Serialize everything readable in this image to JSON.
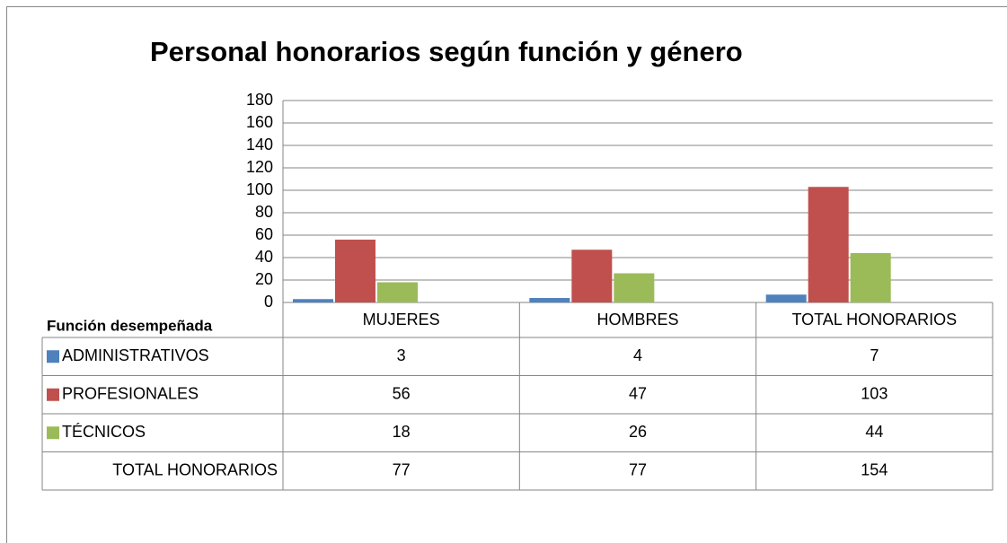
{
  "chart_data": {
    "type": "bar",
    "title": "Personal honorarios según función y género",
    "table_header": "Función desempeñada",
    "categories": [
      "MUJERES",
      "HOMBRES",
      "TOTAL HONORARIOS"
    ],
    "series": [
      {
        "name": "ADMINISTRATIVOS",
        "color": "#4f81bd",
        "values": [
          3,
          4,
          7
        ]
      },
      {
        "name": "PROFESIONALES",
        "color": "#c0504d",
        "values": [
          56,
          47,
          103
        ]
      },
      {
        "name": "TÉCNICOS",
        "color": "#9bbb59",
        "values": [
          18,
          26,
          44
        ]
      }
    ],
    "table_total": {
      "name": "TOTAL HONORARIOS",
      "values": [
        77,
        77,
        154
      ]
    },
    "ylim": [
      0,
      180
    ],
    "yticks": [
      0,
      20,
      40,
      60,
      80,
      100,
      120,
      140,
      160,
      180
    ],
    "grid": true
  }
}
